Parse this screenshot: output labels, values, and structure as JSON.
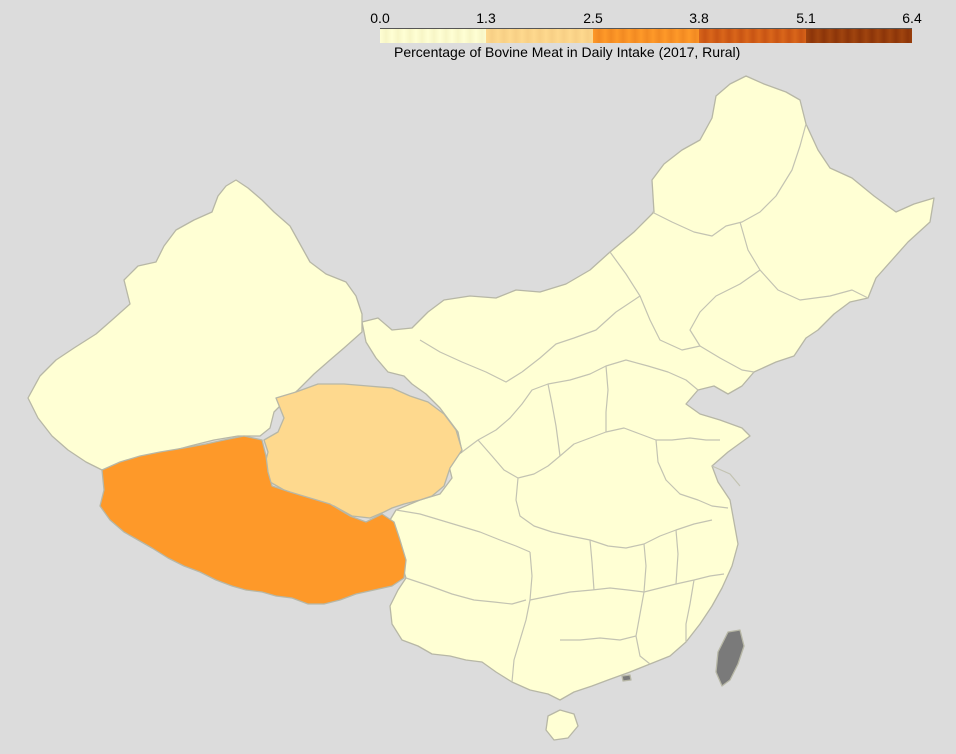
{
  "legend": {
    "title": "Percentage of Bovine Meat in Daily Intake (2017, Rural)",
    "ticks": [
      "0.0",
      "1.3",
      "2.5",
      "3.8",
      "5.1",
      "6.4"
    ],
    "min": 0.0,
    "max": 6.4,
    "bins": [
      {
        "color": "#ffffd4",
        "shade": "#f7f5c6"
      },
      {
        "color": "#fed98e",
        "shade": "#f7cf85"
      },
      {
        "color": "#fe9929",
        "shade": "#f28a22"
      },
      {
        "color": "#d9661a",
        "shade": "#c85414"
      },
      {
        "color": "#a0440e",
        "shade": "#8c3509"
      }
    ]
  },
  "colors": {
    "background": "#dcdcdc",
    "low": "#ffffd4",
    "mid": "#fed98e",
    "high": "#fe9929",
    "no_data": "#7a7a7a"
  },
  "regions": [
    {
      "name": "Xinjiang",
      "value": "low"
    },
    {
      "name": "Qinghai",
      "value": "mid"
    },
    {
      "name": "Tibet",
      "value": "high"
    },
    {
      "name": "Rest of mainland China",
      "value": "low"
    },
    {
      "name": "Taiwan",
      "value": "no_data"
    },
    {
      "name": "Hong Kong",
      "value": "no_data"
    }
  ]
}
